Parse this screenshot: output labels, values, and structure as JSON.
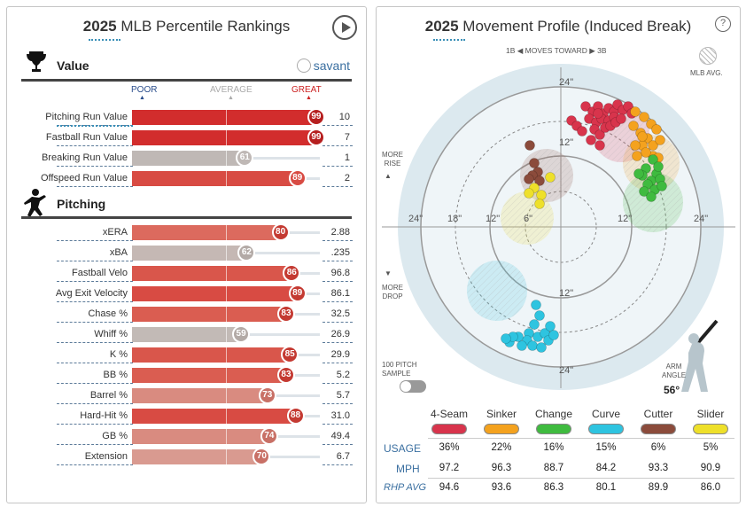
{
  "left": {
    "title_year": "2025",
    "title_rest": " MLB Percentile Rankings",
    "value_section": "Value",
    "pitching_section": "Pitching",
    "savant_label": "savant",
    "scale": {
      "poor": "POOR",
      "average": "AVERAGE",
      "great": "GREAT"
    },
    "value_rows": [
      {
        "label": "Pitching Run Value",
        "percentile": 99,
        "value": "10",
        "color": "#d22d2d"
      },
      {
        "label": "Fastball Run Value",
        "percentile": 99,
        "value": "7",
        "color": "#d22d2d"
      },
      {
        "label": "Breaking Run Value",
        "percentile": 61,
        "value": "1",
        "color": "#bfb8b5"
      },
      {
        "label": "Offspeed Run Value",
        "percentile": 89,
        "value": "2",
        "color": "#d84b43"
      }
    ],
    "pitching_rows": [
      {
        "label": "xERA",
        "percentile": 80,
        "value": "2.88",
        "color": "#dc6a5e"
      },
      {
        "label": "xBA",
        "percentile": 62,
        "value": ".235",
        "color": "#c5b8b4"
      },
      {
        "label": "Fastball Velo",
        "percentile": 86,
        "value": "96.8",
        "color": "#d9564b"
      },
      {
        "label": "Avg Exit Velocity",
        "percentile": 89,
        "value": "86.1",
        "color": "#d84b43"
      },
      {
        "label": "Chase %",
        "percentile": 83,
        "value": "32.5",
        "color": "#da5d51"
      },
      {
        "label": "Whiff %",
        "percentile": 59,
        "value": "26.9",
        "color": "#c2bab6"
      },
      {
        "label": "K %",
        "percentile": 85,
        "value": "29.9",
        "color": "#d9564b"
      },
      {
        "label": "BB %",
        "percentile": 83,
        "value": "5.2",
        "color": "#da5d51"
      },
      {
        "label": "Barrel %",
        "percentile": 73,
        "value": "5.7",
        "color": "#d98b80"
      },
      {
        "label": "Hard-Hit %",
        "percentile": 88,
        "value": "31.0",
        "color": "#d84b43"
      },
      {
        "label": "GB %",
        "percentile": 74,
        "value": "49.4",
        "color": "#d98b80"
      },
      {
        "label": "Extension",
        "percentile": 70,
        "value": "6.7",
        "color": "#d99a90"
      }
    ]
  },
  "right": {
    "title_year": "2025",
    "title_rest": " Movement Profile (Induced Break)",
    "help": "?",
    "top_label_1b": "1B ◀",
    "top_label_mid": "MOVES TOWARD",
    "top_label_3b": "▶ 3B",
    "mlb_avg": "MLB AVG.",
    "more_rise": "MORE\nRISE",
    "more_drop": "MORE\nDROP",
    "sample_label": "100 PITCH\nSAMPLE",
    "arm_angle_label": "ARM\nANGLE",
    "arm_angle_value": "56°",
    "ring_labels": {
      "top_24": "24\"",
      "top_12": "12\"",
      "left_24": "24\"",
      "left_18": "18\"",
      "left_12": "12\"",
      "left_6": "6\"",
      "right_12": "12\"",
      "right_24": "24\"",
      "bottom_12": "12\"",
      "bottom_24": "24\""
    },
    "pitches": [
      {
        "name": "4-Seam",
        "color": "#d8344c",
        "usage": "36%",
        "mph": "97.2",
        "rhp": "94.6"
      },
      {
        "name": "Sinker",
        "color": "#f4a21e",
        "usage": "22%",
        "mph": "96.3",
        "rhp": "93.6"
      },
      {
        "name": "Change",
        "color": "#3fbb3f",
        "usage": "16%",
        "mph": "88.7",
        "rhp": "86.3"
      },
      {
        "name": "Curve",
        "color": "#2ec4e0",
        "usage": "15%",
        "mph": "84.2",
        "rhp": "80.1"
      },
      {
        "name": "Cutter",
        "color": "#8b4b3b",
        "usage": "6%",
        "mph": "93.3",
        "rhp": "89.9"
      },
      {
        "name": "Slider",
        "color": "#eee02a",
        "usage": "5%",
        "mph": "90.9",
        "rhp": "86.0"
      }
    ],
    "row_labels": {
      "usage": "USAGE",
      "mph": "MPH",
      "rhp": "RHP AVG"
    }
  }
}
